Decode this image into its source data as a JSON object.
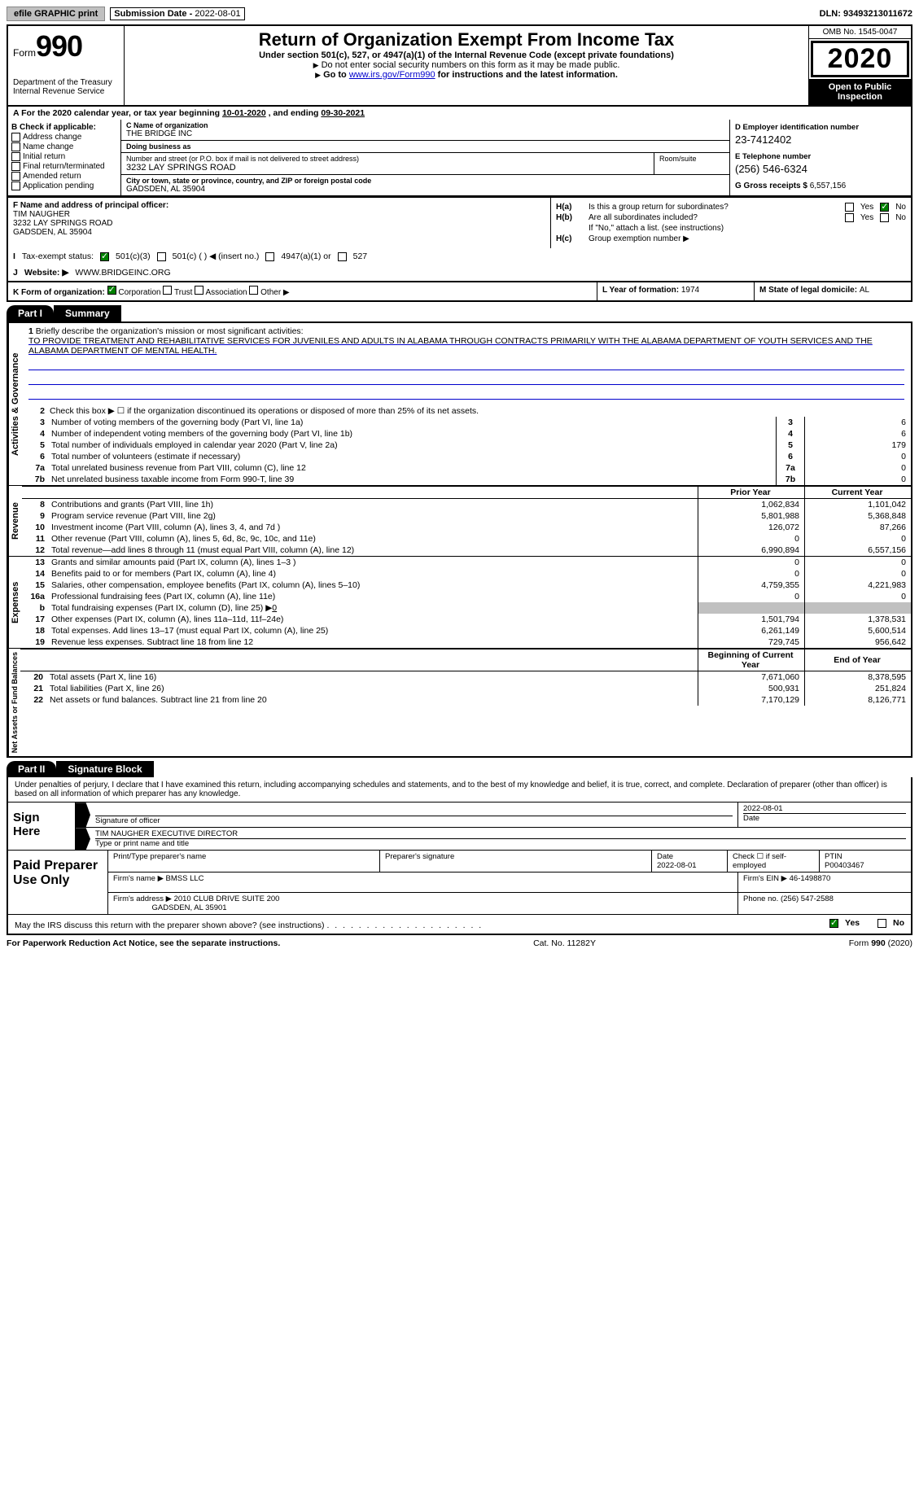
{
  "top": {
    "efile": "efile GRAPHIC print",
    "sub_lbl": "Submission Date - ",
    "sub_date": "2022-08-01",
    "dln_lbl": "DLN: ",
    "dln": "93493213011672"
  },
  "header": {
    "form_word": "Form",
    "form_num": "990",
    "dept": "Department of the Treasury",
    "irs": "Internal Revenue Service",
    "title": "Return of Organization Exempt From Income Tax",
    "sub": "Under section 501(c), 527, or 4947(a)(1) of the Internal Revenue Code (except private foundations)",
    "note1_arrow": "▶",
    "note1": "Do not enter social security numbers on this form as it may be made public.",
    "note2_pre": "Go to ",
    "note2_link": "www.irs.gov/Form990",
    "note2_post": " for instructions and the latest information.",
    "omb": "OMB No. 1545-0047",
    "year": "2020",
    "open": "Open to Public Inspection"
  },
  "lineA": {
    "pre": "A For the 2020 calendar year, or tax year beginning ",
    "begin": "10-01-2020",
    "mid": " , and ending ",
    "end": "09-30-2021"
  },
  "B": {
    "hdr": "B Check if applicable:",
    "opts": [
      "Address change",
      "Name change",
      "Initial return",
      "Final return/terminated",
      "Amended return",
      "Application pending"
    ]
  },
  "C": {
    "name_lbl": "C Name of organization",
    "name": "THE BRIDGE INC",
    "dba_lbl": "Doing business as",
    "dba": "",
    "addr_lbl": "Number and street (or P.O. box if mail is not delivered to street address)",
    "room_lbl": "Room/suite",
    "addr": "3232 LAY SPRINGS ROAD",
    "city_lbl": "City or town, state or province, country, and ZIP or foreign postal code",
    "city": "GADSDEN, AL  35904"
  },
  "D": {
    "ein_lbl": "D Employer identification number",
    "ein": "23-7412402",
    "tel_lbl": "E Telephone number",
    "tel": "(256) 546-6324",
    "gross_lbl": "G Gross receipts $ ",
    "gross": "6,557,156"
  },
  "F": {
    "lbl": "F Name and address of principal officer:",
    "name": "TIM NAUGHER",
    "addr1": "3232 LAY SPRINGS ROAD",
    "addr2": "GADSDEN, AL  35904"
  },
  "H": {
    "a_lbl": "H(a)",
    "a_txt": "Is this a group return for subordinates?",
    "b_lbl": "H(b)",
    "b_txt": "Are all subordinates included?",
    "b_note": "If \"No,\" attach a list. (see instructions)",
    "c_lbl": "H(c)",
    "c_txt": "Group exemption number ▶",
    "yes": "Yes",
    "no": "No"
  },
  "I": {
    "lbl": "I",
    "txt": "Tax-exempt status:",
    "o1": "501(c)(3)",
    "o2": "501(c) (  ) ◀ (insert no.)",
    "o3": "4947(a)(1) or",
    "o4": "527"
  },
  "J": {
    "lbl": "J",
    "txt": "Website: ▶",
    "val": "WWW.BRIDGEINC.ORG"
  },
  "K": {
    "lbl": "K Form of organization:",
    "o1": "Corporation",
    "o2": "Trust",
    "o3": "Association",
    "o4": "Other ▶"
  },
  "L": {
    "lbl": "L Year of formation: ",
    "val": "1974"
  },
  "M": {
    "lbl": "M State of legal domicile: ",
    "val": "AL"
  },
  "part1": {
    "tab": "Part I",
    "title": "Summary"
  },
  "mission": {
    "num": "1",
    "lbl": "Briefly describe the organization's mission or most significant activities:",
    "txt": "TO PROVIDE TREATMENT AND REHABILITATIVE SERVICES FOR JUVENILES AND ADULTS IN ALABAMA THROUGH CONTRACTS PRIMARILY WITH THE ALABAMA DEPARTMENT OF YOUTH SERVICES AND THE ALABAMA DEPARTMENT OF MENTAL HEALTH."
  },
  "gov": {
    "label": "Activities & Governance",
    "l2": "Check this box ▶ ☐  if the organization discontinued its operations or disposed of more than 25% of its net assets.",
    "rows": [
      {
        "n": "3",
        "t": "Number of voting members of the governing body (Part VI, line 1a)",
        "v": "6"
      },
      {
        "n": "4",
        "t": "Number of independent voting members of the governing body (Part VI, line 1b)",
        "v": "6"
      },
      {
        "n": "5",
        "t": "Total number of individuals employed in calendar year 2020 (Part V, line 2a)",
        "v": "179"
      },
      {
        "n": "6",
        "t": "Total number of volunteers (estimate if necessary)",
        "v": "0"
      },
      {
        "n": "7a",
        "t": "Total unrelated business revenue from Part VIII, column (C), line 12",
        "v": "0"
      },
      {
        "n": "7b",
        "t": "Net unrelated business taxable income from Form 990-T, line 39",
        "v": "0"
      }
    ]
  },
  "cols": {
    "prior": "Prior Year",
    "current": "Current Year",
    "boy": "Beginning of Current Year",
    "eoy": "End of Year"
  },
  "rev": {
    "label": "Revenue",
    "rows": [
      {
        "n": "8",
        "t": "Contributions and grants (Part VIII, line 1h)",
        "p": "1,062,834",
        "c": "1,101,042"
      },
      {
        "n": "9",
        "t": "Program service revenue (Part VIII, line 2g)",
        "p": "5,801,988",
        "c": "5,368,848"
      },
      {
        "n": "10",
        "t": "Investment income (Part VIII, column (A), lines 3, 4, and 7d )",
        "p": "126,072",
        "c": "87,266"
      },
      {
        "n": "11",
        "t": "Other revenue (Part VIII, column (A), lines 5, 6d, 8c, 9c, 10c, and 11e)",
        "p": "0",
        "c": "0"
      },
      {
        "n": "12",
        "t": "Total revenue—add lines 8 through 11 (must equal Part VIII, column (A), line 12)",
        "p": "6,990,894",
        "c": "6,557,156"
      }
    ]
  },
  "exp": {
    "label": "Expenses",
    "rows": [
      {
        "n": "13",
        "t": "Grants and similar amounts paid (Part IX, column (A), lines 1–3 )",
        "p": "0",
        "c": "0"
      },
      {
        "n": "14",
        "t": "Benefits paid to or for members (Part IX, column (A), line 4)",
        "p": "0",
        "c": "0"
      },
      {
        "n": "15",
        "t": "Salaries, other compensation, employee benefits (Part IX, column (A), lines 5–10)",
        "p": "4,759,355",
        "c": "4,221,983"
      },
      {
        "n": "16a",
        "t": "Professional fundraising fees (Part IX, column (A), line 11e)",
        "p": "0",
        "c": "0"
      }
    ],
    "l16b_n": "b",
    "l16b": "Total fundraising expenses (Part IX, column (D), line 25) ▶",
    "l16b_v": "0",
    "rows2": [
      {
        "n": "17",
        "t": "Other expenses (Part IX, column (A), lines 11a–11d, 11f–24e)",
        "p": "1,501,794",
        "c": "1,378,531"
      },
      {
        "n": "18",
        "t": "Total expenses. Add lines 13–17 (must equal Part IX, column (A), line 25)",
        "p": "6,261,149",
        "c": "5,600,514"
      },
      {
        "n": "19",
        "t": "Revenue less expenses. Subtract line 18 from line 12",
        "p": "729,745",
        "c": "956,642"
      }
    ]
  },
  "net": {
    "label": "Net Assets or Fund Balances",
    "rows": [
      {
        "n": "20",
        "t": "Total assets (Part X, line 16)",
        "p": "7,671,060",
        "c": "8,378,595"
      },
      {
        "n": "21",
        "t": "Total liabilities (Part X, line 26)",
        "p": "500,931",
        "c": "251,824"
      },
      {
        "n": "22",
        "t": "Net assets or fund balances. Subtract line 21 from line 20",
        "p": "7,170,129",
        "c": "8,126,771"
      }
    ]
  },
  "part2": {
    "tab": "Part II",
    "title": "Signature Block"
  },
  "sig": {
    "decl": "Under penalties of perjury, I declare that I have examined this return, including accompanying schedules and statements, and to the best of my knowledge and belief, it is true, correct, and complete. Declaration of preparer (other than officer) is based on all information of which preparer has any knowledge.",
    "sign_here": "Sign Here",
    "sig_lbl": "Signature of officer",
    "date_lbl": "Date",
    "date_val": "2022-08-01",
    "name": "TIM NAUGHER  EXECUTIVE DIRECTOR",
    "name_lbl": "Type or print name and title"
  },
  "prep": {
    "lbl": "Paid Preparer Use Only",
    "c1": "Print/Type preparer's name",
    "c2": "Preparer's signature",
    "c3_lbl": "Date",
    "c3": "2022-08-01",
    "c4": "Check ☐ if self-employed",
    "c5_lbl": "PTIN",
    "c5": "P00403467",
    "firm_lbl": "Firm's name   ▶",
    "firm": "BMSS LLC",
    "ein_lbl": "Firm's EIN ▶",
    "ein": "46-1498870",
    "addr_lbl": "Firm's address ▶",
    "addr1": "2010 CLUB DRIVE SUITE 200",
    "addr2": "GADSDEN, AL  35901",
    "phone_lbl": "Phone no. ",
    "phone": "(256) 547-2588"
  },
  "discuss": {
    "txt": "May the IRS discuss this return with the preparer shown above? (see instructions)",
    "yes": "Yes",
    "no": "No"
  },
  "footer": {
    "left": "For Paperwork Reduction Act Notice, see the separate instructions.",
    "mid": "Cat. No. 11282Y",
    "right": "Form 990 (2020)"
  }
}
